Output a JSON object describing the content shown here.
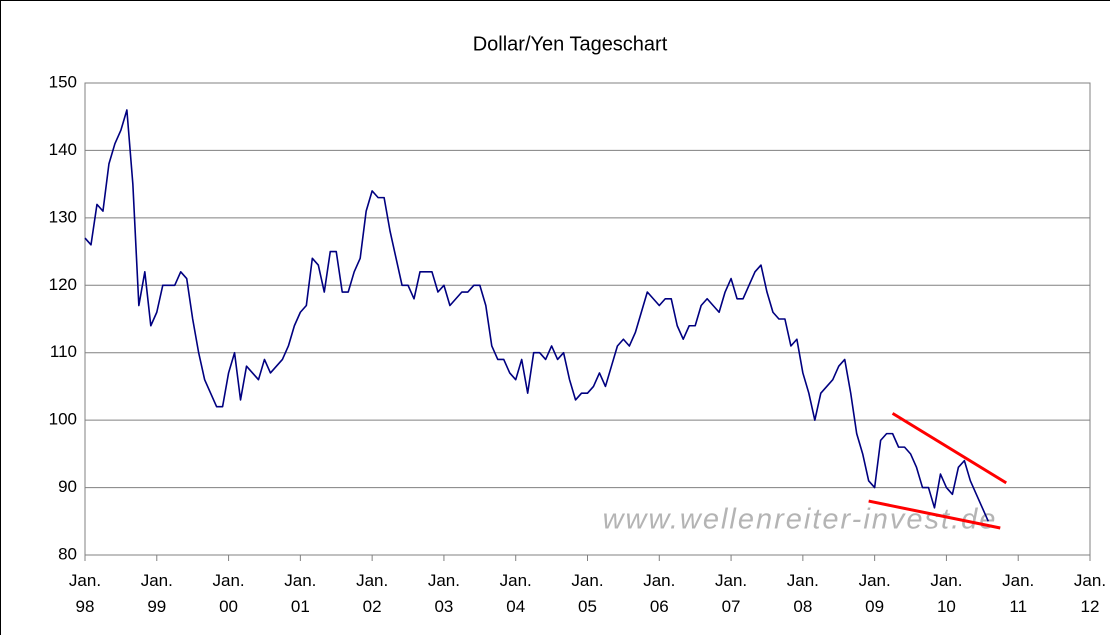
{
  "chart_data": {
    "type": "line",
    "title": "Dollar/Yen Tageschart",
    "annotations": [
      "www.wellenreiter-invest.de"
    ],
    "x": [
      "1998-01",
      "1998-02",
      "1998-03",
      "1998-04",
      "1998-05",
      "1998-06",
      "1998-07",
      "1998-08",
      "1998-09",
      "1998-10",
      "1998-11",
      "1998-12",
      "1999-01",
      "1999-02",
      "1999-03",
      "1999-04",
      "1999-05",
      "1999-06",
      "1999-07",
      "1999-08",
      "1999-09",
      "1999-10",
      "1999-11",
      "1999-12",
      "2000-01",
      "2000-02",
      "2000-03",
      "2000-04",
      "2000-05",
      "2000-06",
      "2000-07",
      "2000-08",
      "2000-09",
      "2000-10",
      "2000-11",
      "2000-12",
      "2001-01",
      "2001-02",
      "2001-03",
      "2001-04",
      "2001-05",
      "2001-06",
      "2001-07",
      "2001-08",
      "2001-09",
      "2001-10",
      "2001-11",
      "2001-12",
      "2002-01",
      "2002-02",
      "2002-03",
      "2002-04",
      "2002-05",
      "2002-06",
      "2002-07",
      "2002-08",
      "2002-09",
      "2002-10",
      "2002-11",
      "2002-12",
      "2003-01",
      "2003-02",
      "2003-03",
      "2003-04",
      "2003-05",
      "2003-06",
      "2003-07",
      "2003-08",
      "2003-09",
      "2003-10",
      "2003-11",
      "2003-12",
      "2004-01",
      "2004-02",
      "2004-03",
      "2004-04",
      "2004-05",
      "2004-06",
      "2004-07",
      "2004-08",
      "2004-09",
      "2004-10",
      "2004-11",
      "2004-12",
      "2005-01",
      "2005-02",
      "2005-03",
      "2005-04",
      "2005-05",
      "2005-06",
      "2005-07",
      "2005-08",
      "2005-09",
      "2005-10",
      "2005-11",
      "2005-12",
      "2006-01",
      "2006-02",
      "2006-03",
      "2006-04",
      "2006-05",
      "2006-06",
      "2006-07",
      "2006-08",
      "2006-09",
      "2006-10",
      "2006-11",
      "2006-12",
      "2007-01",
      "2007-02",
      "2007-03",
      "2007-04",
      "2007-05",
      "2007-06",
      "2007-07",
      "2007-08",
      "2007-09",
      "2007-10",
      "2007-11",
      "2007-12",
      "2008-01",
      "2008-02",
      "2008-03",
      "2008-04",
      "2008-05",
      "2008-06",
      "2008-07",
      "2008-08",
      "2008-09",
      "2008-10",
      "2008-11",
      "2008-12",
      "2009-01",
      "2009-02",
      "2009-03",
      "2009-04",
      "2009-05",
      "2009-06",
      "2009-07",
      "2009-08",
      "2009-09",
      "2009-10",
      "2009-11",
      "2009-12",
      "2010-01",
      "2010-02",
      "2010-03",
      "2010-04",
      "2010-05",
      "2010-06",
      "2010-07",
      "2010-08"
    ],
    "series": [
      {
        "name": "Dollar/Yen",
        "color": "#000080",
        "values": [
          127,
          126,
          132,
          131,
          138,
          141,
          143,
          146,
          135,
          117,
          122,
          114,
          116,
          120,
          120,
          120,
          122,
          121,
          115,
          110,
          106,
          104,
          102,
          102,
          107,
          110,
          103,
          108,
          107,
          106,
          109,
          107,
          108,
          109,
          111,
          114,
          116,
          117,
          124,
          123,
          119,
          125,
          125,
          119,
          119,
          122,
          124,
          131,
          134,
          133,
          133,
          128,
          124,
          120,
          120,
          118,
          122,
          122,
          122,
          119,
          120,
          117,
          118,
          119,
          119,
          120,
          120,
          117,
          111,
          109,
          109,
          107,
          106,
          109,
          104,
          110,
          110,
          109,
          111,
          109,
          110,
          106,
          103,
          104,
          104,
          105,
          107,
          105,
          108,
          111,
          112,
          111,
          113,
          116,
          119,
          118,
          117,
          118,
          118,
          114,
          112,
          114,
          114,
          117,
          118,
          117,
          116,
          119,
          121,
          118,
          118,
          120,
          122,
          123,
          119,
          116,
          115,
          115,
          111,
          112,
          107,
          104,
          100,
          104,
          105,
          106,
          108,
          109,
          104,
          98,
          95,
          91,
          90,
          97,
          98,
          98,
          96,
          96,
          95,
          93,
          90,
          90,
          87,
          92,
          90,
          89,
          93,
          94,
          91,
          89,
          87,
          85
        ]
      }
    ],
    "trend_lines": [
      {
        "color": "#ff0000",
        "x": [
          "2009-04",
          "2010-11"
        ],
        "y": [
          101,
          90.7
        ]
      },
      {
        "color": "#ff0000",
        "x": [
          "2008-12",
          "2010-10"
        ],
        "y": [
          88,
          84
        ]
      }
    ],
    "xlim": [
      "1998-01",
      "2012-01"
    ],
    "xticks": [
      {
        "value": "1998-01",
        "label": "Jan. 98"
      },
      {
        "value": "1999-01",
        "label": "Jan. 99"
      },
      {
        "value": "2000-01",
        "label": "Jan. 00"
      },
      {
        "value": "2001-01",
        "label": "Jan. 01"
      },
      {
        "value": "2002-01",
        "label": "Jan. 02"
      },
      {
        "value": "2003-01",
        "label": "Jan. 03"
      },
      {
        "value": "2004-01",
        "label": "Jan. 04"
      },
      {
        "value": "2005-01",
        "label": "Jan. 05"
      },
      {
        "value": "2006-01",
        "label": "Jan. 06"
      },
      {
        "value": "2007-01",
        "label": "Jan. 07"
      },
      {
        "value": "2008-01",
        "label": "Jan. 08"
      },
      {
        "value": "2009-01",
        "label": "Jan. 09"
      },
      {
        "value": "2010-01",
        "label": "Jan. 10"
      },
      {
        "value": "2011-01",
        "label": "Jan. 11"
      },
      {
        "value": "2012-01",
        "label": "Jan. 12"
      }
    ],
    "ylim": [
      80,
      150
    ],
    "yticks": [
      80,
      90,
      100,
      110,
      120,
      130,
      140,
      150
    ],
    "grid": true
  }
}
